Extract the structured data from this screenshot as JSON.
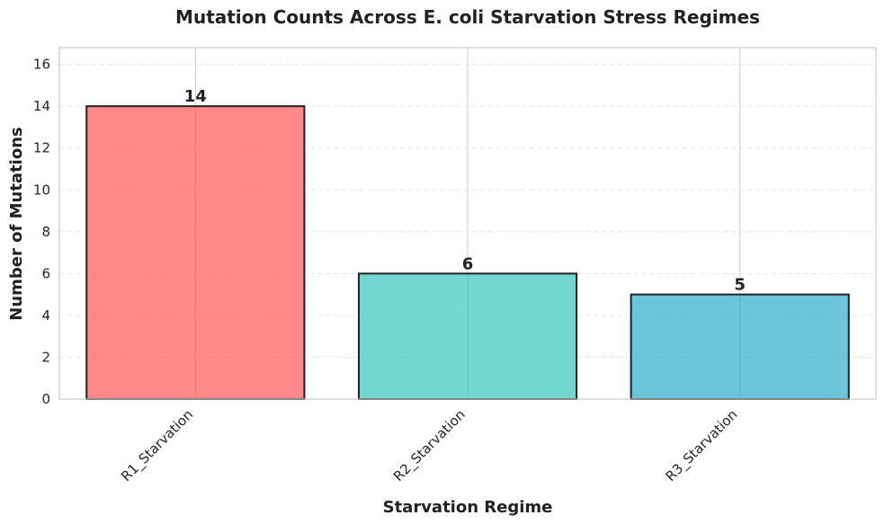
{
  "chart_data": {
    "type": "bar",
    "title": "Mutation Counts Across E. coli Starvation Stress Regimes",
    "xlabel": "Starvation Regime",
    "ylabel": "Number of Mutations",
    "categories": [
      "R1_Starvation",
      "R2_Starvation",
      "R3_Starvation"
    ],
    "values": [
      14,
      6,
      5
    ],
    "data_labels": [
      "14",
      "6",
      "5"
    ],
    "colors": [
      "#ff6b6b",
      "#4ecdc4",
      "#45b7d1"
    ],
    "ylim": [
      0,
      16.8
    ],
    "yticks": [
      0,
      2,
      4,
      6,
      8,
      10,
      12,
      14,
      16
    ],
    "ytick_labels": [
      "0",
      "2",
      "4",
      "6",
      "8",
      "10",
      "12",
      "14",
      "16"
    ],
    "grid": true
  }
}
